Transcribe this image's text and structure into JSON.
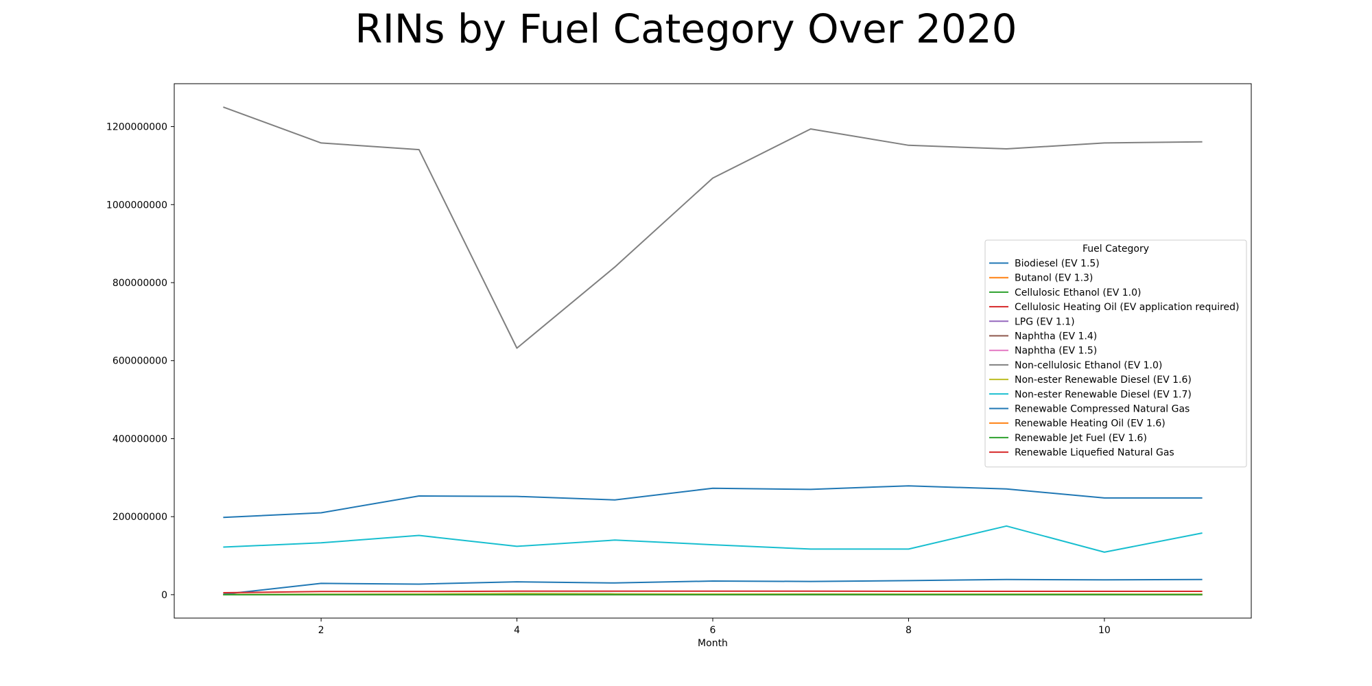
{
  "chart_data": {
    "type": "line",
    "title": "RINs by Fuel Category Over 2020",
    "xlabel": "Month",
    "ylabel": "",
    "x": [
      1,
      2,
      3,
      4,
      5,
      6,
      7,
      8,
      9,
      10,
      11
    ],
    "xlim": [
      0.5,
      11.5
    ],
    "ylim": [
      -60000000,
      1310000000
    ],
    "xticks": [
      2,
      4,
      6,
      8,
      10
    ],
    "yticks": [
      0,
      200000000,
      400000000,
      600000000,
      800000000,
      1000000000,
      1200000000
    ],
    "ytick_labels": [
      "0",
      "200000000",
      "400000000",
      "600000000",
      "800000000",
      "1000000000",
      "1200000000"
    ],
    "grid": false,
    "legend": {
      "title": "Fuel Category",
      "placement": "center-right"
    },
    "series": [
      {
        "name": "Biodiesel (EV 1.5)",
        "color": "#1f77b4",
        "values": [
          198000000,
          210000000,
          253000000,
          252000000,
          243000000,
          273000000,
          270000000,
          279000000,
          271000000,
          248000000,
          248000000
        ]
      },
      {
        "name": "Butanol (EV 1.3)",
        "color": "#ff7f0e",
        "values": [
          100000,
          150000,
          200000,
          250000,
          300000,
          300000,
          300000,
          300000,
          300000,
          300000,
          300000
        ]
      },
      {
        "name": "Cellulosic Ethanol (EV 1.0)",
        "color": "#2ca02c",
        "values": [
          500000,
          800000,
          1200000,
          3000000,
          2000000,
          1500000,
          1500000,
          1200000,
          1000000,
          1000000,
          900000
        ]
      },
      {
        "name": "Cellulosic Heating Oil (EV application required)",
        "color": "#d62728",
        "values": [
          10000,
          10000,
          10000,
          10000,
          10000,
          10000,
          10000,
          10000,
          10000,
          10000,
          10000
        ]
      },
      {
        "name": "LPG (EV 1.1)",
        "color": "#9467bd",
        "values": [
          20000,
          20000,
          20000,
          20000,
          20000,
          20000,
          20000,
          20000,
          20000,
          20000,
          20000
        ]
      },
      {
        "name": "Naphtha (EV 1.4)",
        "color": "#8c564b",
        "values": [
          600000,
          700000,
          800000,
          900000,
          800000,
          800000,
          800000,
          700000,
          700000,
          700000,
          700000
        ]
      },
      {
        "name": "Naphtha (EV 1.5)",
        "color": "#e377c2",
        "values": [
          200000,
          200000,
          200000,
          200000,
          200000,
          200000,
          200000,
          200000,
          200000,
          200000,
          200000
        ]
      },
      {
        "name": "Non-cellulosic Ethanol (EV 1.0)",
        "color": "#7f7f7f",
        "values": [
          1250000000,
          1158000000,
          1141000000,
          632000000,
          840000000,
          1068000000,
          1194000000,
          1152000000,
          1143000000,
          1158000000,
          1161000000
        ]
      },
      {
        "name": "Non-ester Renewable Diesel (EV 1.6)",
        "color": "#bcbd22",
        "values": [
          500000,
          1000000,
          1500000,
          2500000,
          1500000,
          1500000,
          1200000,
          1200000,
          1000000,
          1000000,
          1000000
        ]
      },
      {
        "name": "Non-ester Renewable Diesel (EV 1.7)",
        "color": "#17becf",
        "values": [
          122000000,
          133000000,
          152000000,
          124000000,
          140000000,
          128000000,
          117000000,
          117000000,
          176000000,
          109000000,
          158000000
        ]
      },
      {
        "name": "Renewable Compressed Natural Gas",
        "color": "#1f77b4",
        "values": [
          1000000,
          29000000,
          27000000,
          33000000,
          30000000,
          35000000,
          34000000,
          36000000,
          39000000,
          38000000,
          39000000
        ]
      },
      {
        "name": "Renewable Heating Oil (EV 1.6)",
        "color": "#ff7f0e",
        "values": [
          300000,
          300000,
          300000,
          300000,
          300000,
          300000,
          300000,
          300000,
          300000,
          300000,
          300000
        ]
      },
      {
        "name": "Renewable Jet Fuel (EV 1.6)",
        "color": "#2ca02c",
        "values": [
          0,
          0,
          0,
          0,
          0,
          0,
          0,
          0,
          0,
          0,
          0
        ]
      },
      {
        "name": "Renewable Liquefied Natural Gas",
        "color": "#d62728",
        "values": [
          5000000,
          8000000,
          8000000,
          9000000,
          9000000,
          9000000,
          9000000,
          8500000,
          8500000,
          8500000,
          8500000
        ]
      }
    ]
  }
}
